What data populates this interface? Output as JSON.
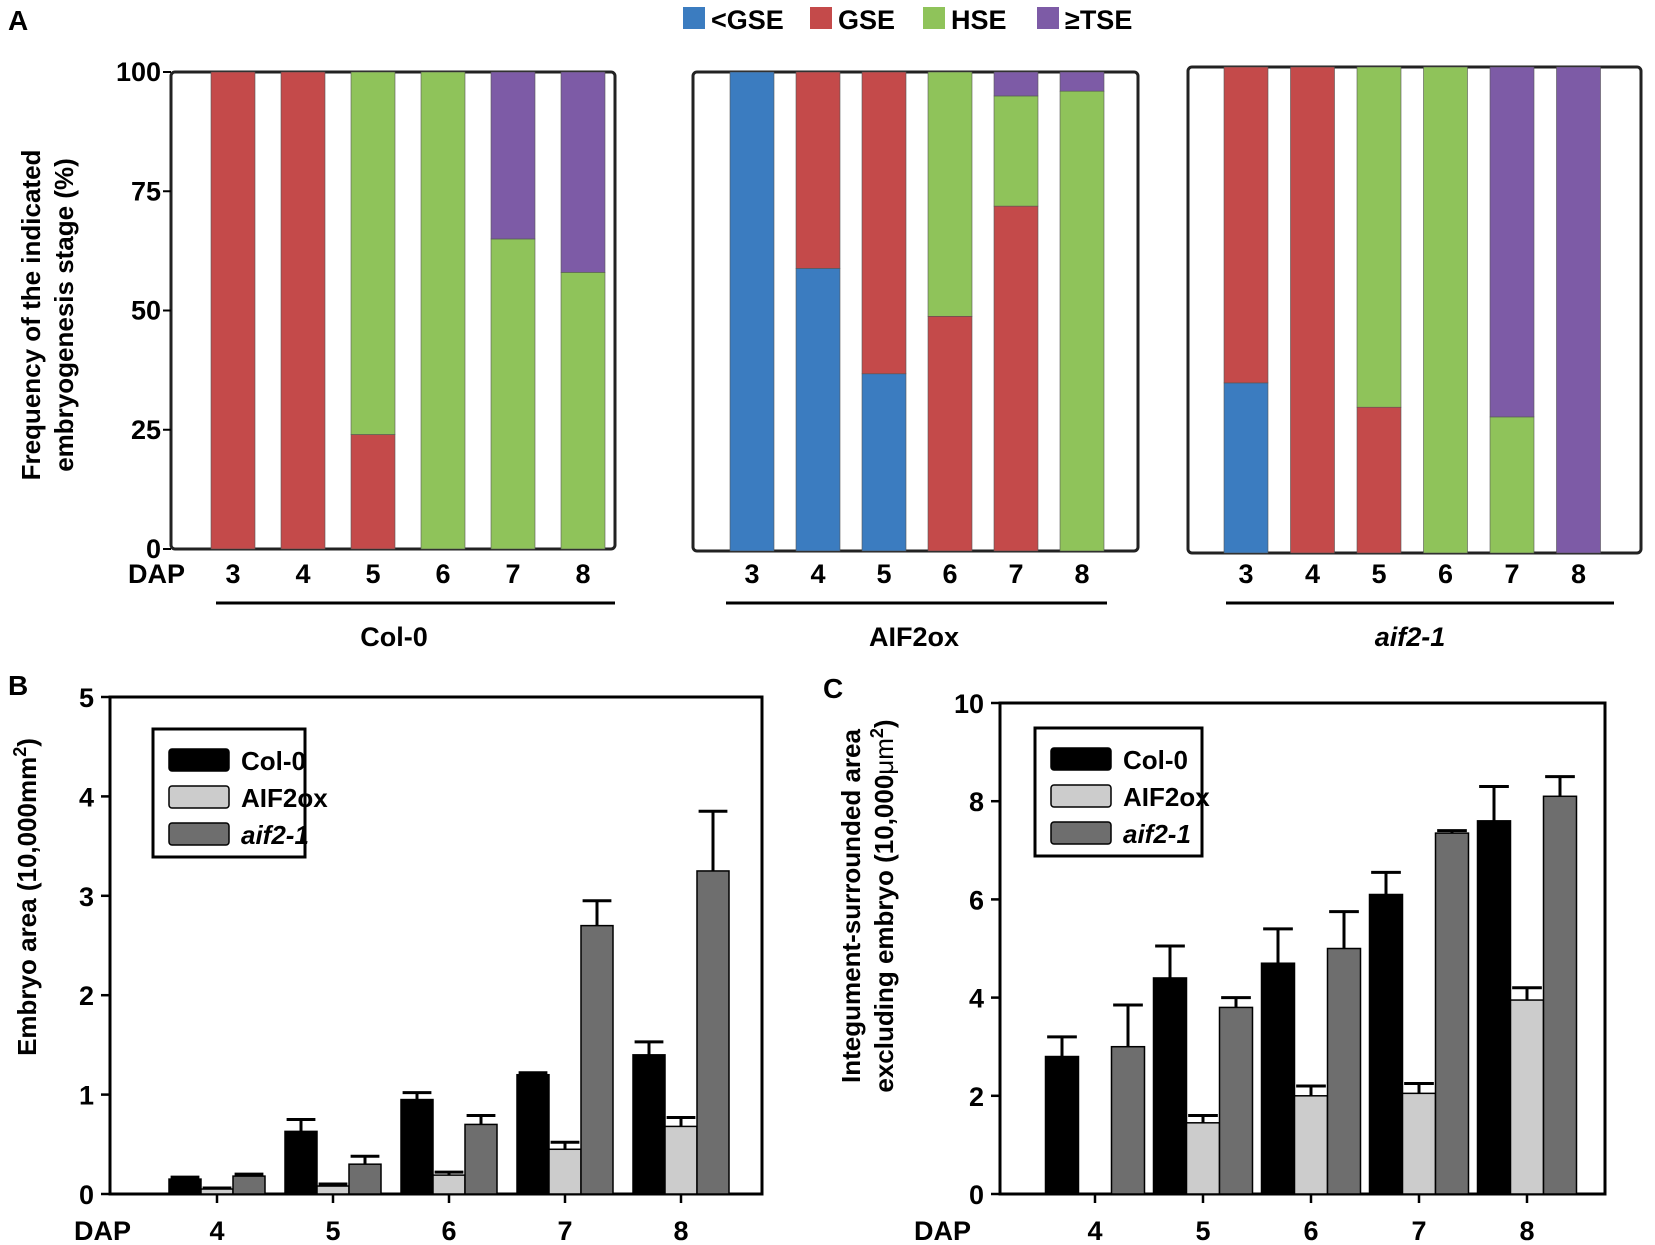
{
  "panel_labels": [
    "A",
    "B",
    "C"
  ],
  "legend_a": [
    {
      "label": "<GSE",
      "color": "#3b7cc0"
    },
    {
      "label": "GSE",
      "color": "#c44a4a"
    },
    {
      "label": "HSE",
      "color": "#8fc35a"
    },
    {
      "label": "≥TSE",
      "color": "#7d5ba6"
    }
  ],
  "chart_data": [
    {
      "type": "bar",
      "stacked": true,
      "panel": "A",
      "ylabel_line1": "Frequency of the indicated",
      "ylabel_line2": "embryogenesis stage (%)",
      "xlabel": "DAP",
      "ylim": [
        0,
        100
      ],
      "yticks": [
        "0",
        "25",
        "50",
        "75",
        "100"
      ],
      "categories": [
        "3",
        "4",
        "5",
        "6",
        "7",
        "8"
      ],
      "groups": [
        {
          "name": "Col-0",
          "italic": false,
          "series": [
            {
              "name": "<GSE",
              "values": [
                0,
                0,
                0,
                0,
                0,
                0
              ]
            },
            {
              "name": "GSE",
              "values": [
                100,
                100,
                24,
                0,
                0,
                0
              ]
            },
            {
              "name": "HSE",
              "values": [
                0,
                0,
                76,
                100,
                65,
                58
              ]
            },
            {
              "name": "≥TSE",
              "values": [
                0,
                0,
                0,
                0,
                35,
                42
              ]
            }
          ]
        },
        {
          "name": "AIF2ox",
          "italic": false,
          "series": [
            {
              "name": "<GSE",
              "values": [
                100,
                59,
                37,
                0,
                0,
                0
              ]
            },
            {
              "name": "GSE",
              "values": [
                0,
                41,
                63,
                49,
                72,
                0
              ]
            },
            {
              "name": "HSE",
              "values": [
                0,
                0,
                0,
                51,
                23,
                96
              ]
            },
            {
              "name": "≥TSE",
              "values": [
                0,
                0,
                0,
                0,
                5,
                4
              ]
            }
          ]
        },
        {
          "name": "aif2-1",
          "italic": true,
          "series": [
            {
              "name": "<GSE",
              "values": [
                35,
                0,
                0,
                0,
                0,
                0
              ]
            },
            {
              "name": "GSE",
              "values": [
                65,
                100,
                30,
                0,
                0,
                0
              ]
            },
            {
              "name": "HSE",
              "values": [
                0,
                0,
                70,
                100,
                28,
                0
              ]
            },
            {
              "name": "≥TSE",
              "values": [
                0,
                0,
                0,
                0,
                72,
                100
              ]
            }
          ]
        }
      ]
    },
    {
      "type": "bar",
      "panel": "B",
      "ylabel": "Embryo area (10,000mm",
      "ylabel_sup": "2",
      "ylabel_end": ")",
      "xlabel": "DAP",
      "ylim": [
        0,
        5
      ],
      "yticks": [
        "0",
        "1",
        "2",
        "3",
        "4",
        "5"
      ],
      "categories": [
        "4",
        "5",
        "6",
        "7",
        "8"
      ],
      "series": [
        {
          "name": "Col-0",
          "italic": false,
          "color": "#000000",
          "values": [
            0.15,
            0.63,
            0.95,
            1.2,
            1.4
          ],
          "errors": [
            0.02,
            0.12,
            0.07,
            0.02,
            0.13
          ]
        },
        {
          "name": "AIF2ox",
          "italic": false,
          "color": "#cccccc",
          "values": [
            0.05,
            0.08,
            0.19,
            0.45,
            0.68
          ],
          "errors": [
            0.01,
            0.02,
            0.03,
            0.07,
            0.09
          ]
        },
        {
          "name": "aif2-1",
          "italic": true,
          "color": "#6e6e6e",
          "values": [
            0.18,
            0.3,
            0.7,
            2.7,
            3.25
          ],
          "errors": [
            0.02,
            0.08,
            0.09,
            0.25,
            0.6
          ]
        }
      ]
    },
    {
      "type": "bar",
      "panel": "C",
      "ylabel_line1": "Integument-surrounded area",
      "ylabel_line2_a": "excluding embryo (10,000",
      "ylabel_line2_mu": "μm",
      "ylabel_line2_sup": "2",
      "ylabel_line2_end": ")",
      "xlabel": "DAP",
      "ylim": [
        0,
        10
      ],
      "yticks": [
        "0",
        "2",
        "4",
        "6",
        "8",
        "10"
      ],
      "categories": [
        "4",
        "5",
        "6",
        "7",
        "8"
      ],
      "series": [
        {
          "name": "Col-0",
          "italic": false,
          "color": "#000000",
          "values": [
            2.8,
            4.4,
            4.7,
            6.1,
            7.6
          ],
          "errors": [
            0.4,
            0.65,
            0.7,
            0.45,
            0.7
          ]
        },
        {
          "name": "AIF2ox",
          "italic": false,
          "color": "#cccccc",
          "values": [
            0,
            1.45,
            2.0,
            2.05,
            3.95
          ],
          "errors": [
            0,
            0.15,
            0.2,
            0.2,
            0.25
          ]
        },
        {
          "name": "aif2-1",
          "italic": true,
          "color": "#6e6e6e",
          "values": [
            3.0,
            3.8,
            5.0,
            7.35,
            8.1
          ],
          "errors": [
            0.85,
            0.2,
            0.75,
            0.05,
            0.4
          ]
        }
      ]
    }
  ]
}
